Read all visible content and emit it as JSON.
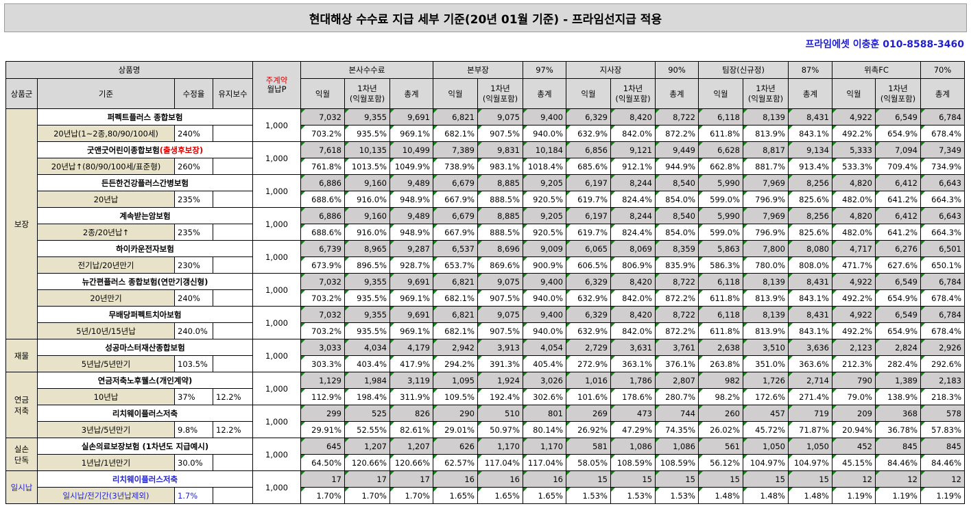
{
  "title": "현대해상 수수료 지급 세부 기준(20년 01월 기준) - 프라임선지급 적용",
  "contact": "프라임에셋 이충훈 010-8588-3460",
  "header": {
    "product_name": "상품명",
    "premium_line1": "주계약",
    "premium_line2": "월납P",
    "group_col": "상품군",
    "criteria_col": "기준",
    "rate_col": "수정율",
    "maint_col": "유지보수",
    "sub_first": "익월",
    "sub_year1_line1": "1차년",
    "sub_year1_line2": "(익월포함)",
    "sub_total": "총계",
    "levels": [
      {
        "name": "본사수수료",
        "pct": ""
      },
      {
        "name": "본부장",
        "pct": "97%"
      },
      {
        "name": "지사장",
        "pct": "90%"
      },
      {
        "name": "팀장(신규정)",
        "pct": "87%"
      },
      {
        "name": "위촉FC",
        "pct": "70%"
      }
    ]
  },
  "groups": [
    {
      "label": "보장"
    },
    {
      "label": "재물"
    },
    {
      "label1": "연금",
      "label2": "저축"
    },
    {
      "label1": "실손",
      "label2": "단독"
    },
    {
      "label": "일시납"
    }
  ],
  "products": [
    {
      "name": "퍼펙트플러스 종합보험",
      "criteria": "20년납(1~2종,80/90/100세)",
      "rate": "240%",
      "maint": "",
      "premium": "1,000",
      "amounts": [
        "7,032",
        "9,355",
        "9,691",
        "6,821",
        "9,075",
        "9,400",
        "6,329",
        "8,420",
        "8,722",
        "6,118",
        "8,139",
        "8,431",
        "4,922",
        "6,549",
        "6,784"
      ],
      "pcts": [
        "703.2%",
        "935.5%",
        "969.1%",
        "682.1%",
        "907.5%",
        "940.0%",
        "632.9%",
        "842.0%",
        "872.2%",
        "611.8%",
        "813.9%",
        "843.1%",
        "492.2%",
        "654.9%",
        "678.4%"
      ]
    },
    {
      "name": "굿앤굿어린이종합보험",
      "name_red": "(출생후보장)",
      "criteria": "20년납↑(80/90/100세/표준형)",
      "rate": "260%",
      "maint": "",
      "premium": "1,000",
      "amounts": [
        "7,618",
        "10,135",
        "10,499",
        "7,389",
        "9,831",
        "10,184",
        "6,856",
        "9,121",
        "9,449",
        "6,628",
        "8,817",
        "9,134",
        "5,333",
        "7,094",
        "7,349"
      ],
      "pcts": [
        "761.8%",
        "1013.5%",
        "1049.9%",
        "738.9%",
        "983.1%",
        "1018.4%",
        "685.6%",
        "912.1%",
        "944.9%",
        "662.8%",
        "881.7%",
        "913.4%",
        "533.3%",
        "709.4%",
        "734.9%"
      ]
    },
    {
      "name": "든든한건강플러스간병보험",
      "criteria": "20년납",
      "rate": "235%",
      "maint": "",
      "premium": "1,000",
      "amounts": [
        "6,886",
        "9,160",
        "9,489",
        "6,679",
        "8,885",
        "9,205",
        "6,197",
        "8,244",
        "8,540",
        "5,990",
        "7,969",
        "8,256",
        "4,820",
        "6,412",
        "6,643"
      ],
      "pcts": [
        "688.6%",
        "916.0%",
        "948.9%",
        "667.9%",
        "888.5%",
        "920.5%",
        "619.7%",
        "824.4%",
        "854.0%",
        "599.0%",
        "796.9%",
        "825.6%",
        "482.0%",
        "641.2%",
        "664.3%"
      ]
    },
    {
      "name": "계속받는암보험",
      "criteria": "2종/20년납↑",
      "rate": "235%",
      "maint": "",
      "premium": "1,000",
      "amounts": [
        "6,886",
        "9,160",
        "9,489",
        "6,679",
        "8,885",
        "9,205",
        "6,197",
        "8,244",
        "8,540",
        "5,990",
        "7,969",
        "8,256",
        "4,820",
        "6,412",
        "6,643"
      ],
      "pcts": [
        "688.6%",
        "916.0%",
        "948.9%",
        "667.9%",
        "888.5%",
        "920.5%",
        "619.7%",
        "824.4%",
        "854.0%",
        "599.0%",
        "796.9%",
        "825.6%",
        "482.0%",
        "641.2%",
        "664.3%"
      ]
    },
    {
      "name": "하이카운전자보험",
      "criteria": "전기납/20년만기",
      "rate": "230%",
      "maint": "",
      "premium": "1,000",
      "amounts": [
        "6,739",
        "8,965",
        "9,287",
        "6,537",
        "8,696",
        "9,009",
        "6,065",
        "8,069",
        "8,359",
        "5,863",
        "7,800",
        "8,080",
        "4,717",
        "6,276",
        "6,501"
      ],
      "pcts": [
        "673.9%",
        "896.5%",
        "928.7%",
        "653.7%",
        "869.6%",
        "900.9%",
        "606.5%",
        "806.9%",
        "835.9%",
        "586.3%",
        "780.0%",
        "808.0%",
        "471.7%",
        "627.6%",
        "650.1%"
      ]
    },
    {
      "name": "뉴간편플러스 종합보험(연만기갱신형)",
      "criteria": "20년만기",
      "rate": "240%",
      "maint": "",
      "premium": "1,000",
      "amounts": [
        "7,032",
        "9,355",
        "9,691",
        "6,821",
        "9,075",
        "9,400",
        "6,329",
        "8,420",
        "8,722",
        "6,118",
        "8,139",
        "8,431",
        "4,922",
        "6,549",
        "6,784"
      ],
      "pcts": [
        "703.2%",
        "935.5%",
        "969.1%",
        "682.1%",
        "907.5%",
        "940.0%",
        "632.9%",
        "842.0%",
        "872.2%",
        "611.8%",
        "813.9%",
        "843.1%",
        "492.2%",
        "654.9%",
        "678.4%"
      ]
    },
    {
      "name": "무배당퍼펙트치아보험",
      "criteria": "5년/10년/15년납",
      "rate": "240.0%",
      "maint": "",
      "premium": "1,000",
      "amounts": [
        "7,032",
        "9,355",
        "9,691",
        "6,821",
        "9,075",
        "9,400",
        "6,329",
        "8,420",
        "8,722",
        "6,118",
        "8,139",
        "8,431",
        "4,922",
        "6,549",
        "6,784"
      ],
      "pcts": [
        "703.2%",
        "935.5%",
        "969.1%",
        "682.1%",
        "907.5%",
        "940.0%",
        "632.9%",
        "842.0%",
        "872.2%",
        "611.8%",
        "813.9%",
        "843.1%",
        "492.2%",
        "654.9%",
        "678.4%"
      ]
    },
    {
      "name": "성공마스터재산종합보험",
      "criteria": "5년납/5년만기",
      "rate": "103.5%",
      "maint": "",
      "premium": "1,000",
      "amounts": [
        "3,033",
        "4,034",
        "4,179",
        "2,942",
        "3,913",
        "4,054",
        "2,729",
        "3,631",
        "3,761",
        "2,638",
        "3,510",
        "3,636",
        "2,123",
        "2,824",
        "2,926"
      ],
      "pcts": [
        "303.3%",
        "403.4%",
        "417.9%",
        "294.2%",
        "391.3%",
        "405.4%",
        "272.9%",
        "363.1%",
        "376.1%",
        "263.8%",
        "351.0%",
        "363.6%",
        "212.3%",
        "282.4%",
        "292.6%"
      ]
    },
    {
      "name": "연금저축노후웰스(개인계약)",
      "criteria": "10년납",
      "rate": "37%",
      "maint": "12.2%",
      "premium": "1,000",
      "amounts": [
        "1,129",
        "1,984",
        "3,119",
        "1,095",
        "1,924",
        "3,026",
        "1,016",
        "1,786",
        "2,807",
        "982",
        "1,726",
        "2,714",
        "790",
        "1,389",
        "2,183"
      ],
      "pcts": [
        "112.9%",
        "198.4%",
        "311.9%",
        "109.5%",
        "192.4%",
        "302.6%",
        "101.6%",
        "178.6%",
        "280.7%",
        "98.2%",
        "172.6%",
        "271.4%",
        "79.0%",
        "138.9%",
        "218.3%"
      ]
    },
    {
      "name": "리치웨이플러스저축",
      "criteria": "3년납/5년만기",
      "rate": "9.8%",
      "maint": "12.2%",
      "premium": "1,000",
      "amounts": [
        "299",
        "525",
        "826",
        "290",
        "510",
        "801",
        "269",
        "473",
        "744",
        "260",
        "457",
        "719",
        "209",
        "368",
        "578"
      ],
      "pcts": [
        "29.91%",
        "52.55%",
        "82.61%",
        "29.01%",
        "50.97%",
        "80.14%",
        "26.92%",
        "47.29%",
        "74.35%",
        "26.02%",
        "45.72%",
        "71.87%",
        "20.94%",
        "36.78%",
        "57.83%"
      ]
    },
    {
      "name": "실손의료보장보험 (1차년도 지급예시)",
      "criteria": "1년납/1년만기",
      "rate": "30.0%",
      "maint": "",
      "premium": "1,000",
      "amounts": [
        "645",
        "1,207",
        "1,207",
        "626",
        "1,170",
        "1,170",
        "581",
        "1,086",
        "1,086",
        "561",
        "1,050",
        "1,050",
        "452",
        "845",
        "845"
      ],
      "pcts": [
        "64.50%",
        "120.66%",
        "120.66%",
        "62.57%",
        "117.04%",
        "117.04%",
        "58.05%",
        "108.59%",
        "108.59%",
        "56.12%",
        "104.97%",
        "104.97%",
        "45.15%",
        "84.46%",
        "84.46%"
      ]
    },
    {
      "name": "리치웨이플러스저축",
      "criteria": "일시납/전기간(3년납제외)",
      "rate": "1.7%",
      "maint": "",
      "premium": "1,000",
      "amounts": [
        "17",
        "17",
        "17",
        "16",
        "16",
        "16",
        "15",
        "15",
        "15",
        "15",
        "15",
        "15",
        "12",
        "12",
        "12"
      ],
      "pcts": [
        "1.70%",
        "1.70%",
        "1.70%",
        "1.65%",
        "1.65%",
        "1.65%",
        "1.53%",
        "1.53%",
        "1.53%",
        "1.48%",
        "1.48%",
        "1.48%",
        "1.19%",
        "1.19%",
        "1.19%"
      ]
    }
  ],
  "colors": {
    "title_bg": "#d9d9d9",
    "header_bg": "#d9d9d9",
    "criteria_bg": "#e8e3c8",
    "amount_bg": "#d0cece",
    "contact_blue": "#1f1fd0",
    "red": "#e00000",
    "marker_green": "#0a8a0a"
  }
}
